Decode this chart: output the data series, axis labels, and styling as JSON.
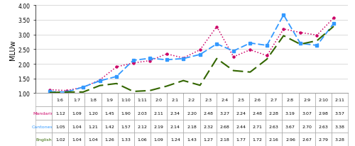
{
  "x_labels": [
    "1:6",
    "1:7",
    "1:8",
    "1:9",
    "1:10",
    "1:11",
    "2:0",
    "2:1",
    "2:2",
    "2:3",
    "2:4",
    "2:5",
    "2:6",
    "2:7",
    "2:8",
    "2:9",
    "2:10",
    "2:11"
  ],
  "mandarin": [
    1.12,
    1.09,
    1.2,
    1.45,
    1.9,
    2.03,
    2.11,
    2.34,
    2.2,
    2.48,
    3.27,
    2.24,
    2.48,
    2.28,
    3.19,
    3.07,
    2.98,
    3.57
  ],
  "cantonese": [
    1.05,
    1.04,
    1.21,
    1.42,
    1.57,
    2.12,
    2.19,
    2.14,
    2.18,
    2.32,
    2.68,
    2.44,
    2.71,
    2.63,
    3.67,
    2.7,
    2.63,
    3.38
  ],
  "english": [
    1.02,
    1.04,
    1.04,
    1.26,
    1.33,
    1.06,
    1.09,
    1.24,
    1.43,
    1.27,
    2.18,
    1.77,
    1.72,
    2.16,
    2.96,
    2.67,
    2.79,
    3.28
  ],
  "mandarin_color": "#cc0066",
  "cantonese_color": "#3399ff",
  "english_color": "#336600",
  "ylabel": "MLUw",
  "ylim_min": 1.0,
  "ylim_max": 4.0,
  "yticks": [
    1.0,
    1.5,
    2.0,
    2.5,
    3.0,
    3.5,
    4.0
  ],
  "row_labels": [
    "Mandarin",
    "Cantonese",
    "English"
  ],
  "row_colors": [
    "#cc0066",
    "#3399ff",
    "#336600"
  ]
}
